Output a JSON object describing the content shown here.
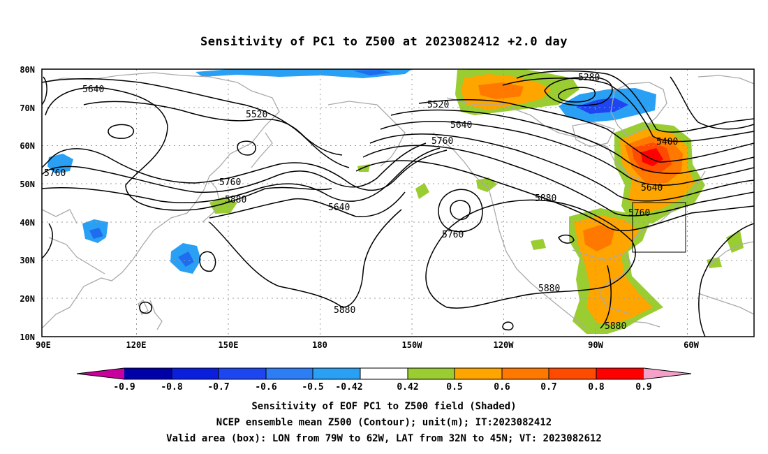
{
  "title": "Sensitivity of PC1 to Z500 at 2023082412 +2.0 day",
  "map": {
    "lat_labels": [
      "80N",
      "70N",
      "60N",
      "50N",
      "40N",
      "30N",
      "20N",
      "10N"
    ],
    "lon_labels": [
      "90E",
      "120E",
      "150E",
      "180",
      "150W",
      "120W",
      "90W",
      "60W"
    ],
    "contour_labels": [
      {
        "text": "5640",
        "series": "5640"
      },
      {
        "text": "5520",
        "series": "5520"
      },
      {
        "text": "5280",
        "series": "5280"
      },
      {
        "text": "5520",
        "series": "5520"
      },
      {
        "text": "5640",
        "series": "5640"
      },
      {
        "text": "5760",
        "series": "5760"
      },
      {
        "text": "5400",
        "series": "5400"
      },
      {
        "text": "5760",
        "series": "5760"
      },
      {
        "text": "5760",
        "series": "5760"
      },
      {
        "text": "5880",
        "series": "5880"
      },
      {
        "text": "5640",
        "series": "5640"
      },
      {
        "text": "5760",
        "series": "5760"
      },
      {
        "text": "5880",
        "series": "5880"
      },
      {
        "text": "5640",
        "series": "5640"
      },
      {
        "text": "5760",
        "series": "5760"
      },
      {
        "text": "5880",
        "series": "5880"
      },
      {
        "text": "5880",
        "series": "5880"
      },
      {
        "text": "5880",
        "series": "5880"
      }
    ],
    "valid_box": {
      "lon_from": "79W",
      "lon_to": "62W",
      "lat_from": "32N",
      "lat_to": "45N"
    }
  },
  "colorbar": {
    "labels": [
      "-0.9",
      "-0.8",
      "-0.7",
      "-0.6",
      "-0.5",
      "-0.42",
      "0.42",
      "0.5",
      "0.6",
      "0.7",
      "0.8",
      "0.9"
    ],
    "colors": [
      "#c8009c",
      "#0000a8",
      "#0a1edc",
      "#1e46f0",
      "#2d7ef5",
      "#2aa0f5",
      "#00c8ff",
      "#ffffff",
      "#9acd32",
      "#ffa500",
      "#ff7800",
      "#ff4b00",
      "#ff0000",
      "#f5a0c8"
    ]
  },
  "captions": {
    "line1": "Sensitivity of EOF PC1 to Z500 field (Shaded)",
    "line2": "NCEP ensemble mean Z500 (Contour); unit(m); IT:2023082412",
    "line3": "Valid area (box): LON from 79W to 62W, LAT from 32N to 45N; VT: 2023082612"
  }
}
